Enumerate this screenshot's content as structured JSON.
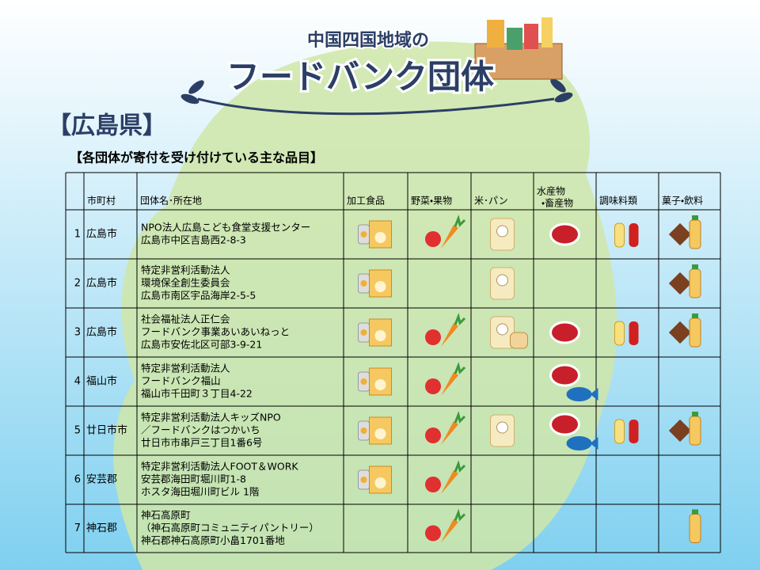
{
  "header": {
    "subtitle": "中国四国地域の",
    "title": "フードバンク団体"
  },
  "prefecture": "【広島県】",
  "caption": "【各団体が寄付を受け付けている主な品目】",
  "table": {
    "headers": [
      "市町村",
      "団体名･所在地",
      "加工食品",
      "野菜・果物",
      "米･パン",
      [
        "水産物",
        "・畜産物"
      ],
      "調味料類",
      "菓子・飲料"
    ],
    "rows": [
      {
        "no": 1,
        "city": "広島市",
        "org": [
          "NPO法人広島こども食堂支援センター",
          "広島市中区吉島西2-8-3"
        ]
      },
      {
        "no": 2,
        "city": "広島市",
        "org": [
          "特定非営利活動法人",
          "環境保全創生委員会",
          "広島市南区宇品海岸2-5-5"
        ]
      },
      {
        "no": 3,
        "city": "広島市",
        "org": [
          "社会福祉法人正仁会",
          "フードバンク事業あいあいねっと",
          "広島市安佐北区可部3-9-21"
        ]
      },
      {
        "no": 4,
        "city": "福山市",
        "org": [
          "特定非営利活動法人",
          "フードバンク福山",
          "福山市千田町３丁目4-22"
        ]
      },
      {
        "no": 5,
        "city": "廿日市市",
        "org": [
          "特定非営利活動法人キッズNPO",
          "／フードバンクはつかいち",
          "廿日市市串戸三丁目1番6号"
        ]
      },
      {
        "no": 6,
        "city": "安芸郡",
        "org": [
          "特定非営利活動法人FOOT＆WORK",
          "安芸郡海田町堀川町1-8",
          "ホスタ海田堀川町ビル 1階"
        ]
      },
      {
        "no": 7,
        "city": "神石郡",
        "org": [
          "神石高原町",
          "（神石高原町コミュニティパントリー）",
          "神石郡神石高原町小畠1701番地"
        ]
      }
    ]
  }
}
